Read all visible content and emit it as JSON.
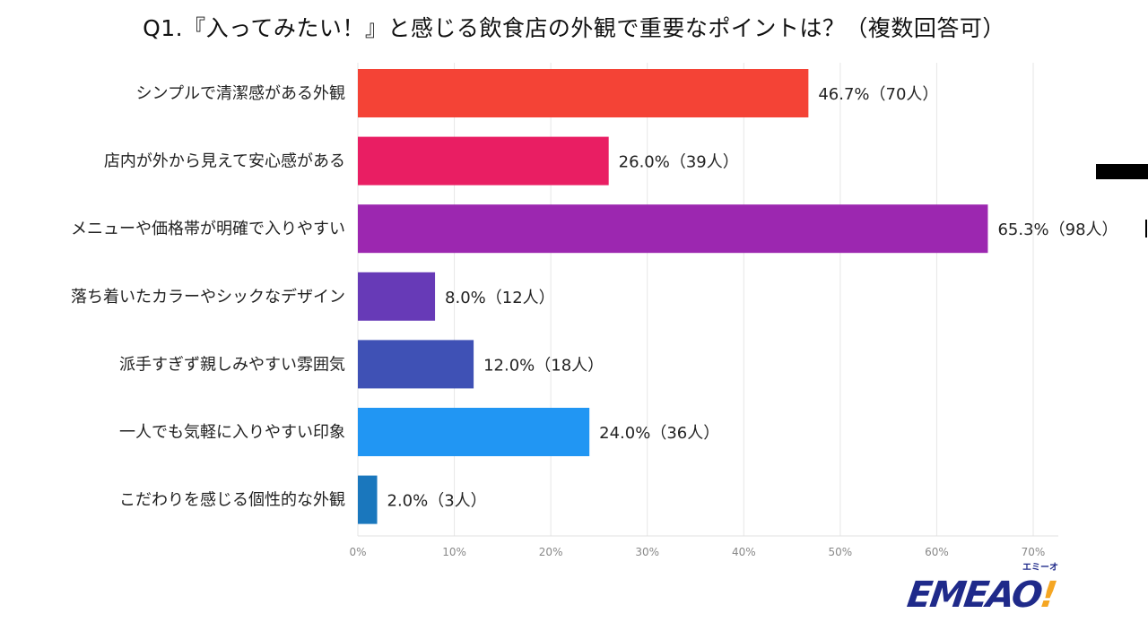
{
  "chart_data": {
    "type": "bar",
    "orientation": "horizontal",
    "title": "Q1.『入ってみたい！』と感じる飲食店の外観で重要なポイントは？（複数回答可）",
    "categories": [
      "シンプルで清潔感がある外観",
      "店内が外から見えて安心感がある",
      "メニューや価格帯が明確で入りやすい",
      "落ち着いたカラーやシックなデザイン",
      "派手すぎず親しみやすい雰囲気",
      "一人でも気軽に入りやすい印象",
      "こだわりを感じる個性的な外観"
    ],
    "values": [
      46.7,
      26.0,
      65.3,
      8.0,
      12.0,
      24.0,
      2.0
    ],
    "data_labels": [
      "46.7%（70人）",
      "26.0%（39人）",
      "65.3%（98人）",
      "8.0%（12人）",
      "12.0%（18人）",
      "24.0%（36人）",
      "2.0%（3人）"
    ],
    "colors": [
      "#f44336",
      "#e91e63",
      "#9c27b0",
      "#673ab7",
      "#3f51b5",
      "#2196f3",
      "#1a77bd"
    ],
    "xlim": [
      0,
      70
    ],
    "xticks": [
      "0%",
      "10%",
      "20%",
      "30%",
      "40%",
      "50%",
      "60%",
      "70%"
    ],
    "grid": true,
    "xlabel": "",
    "ylabel": ""
  },
  "logo": {
    "text": "EMEAO",
    "bang": "!",
    "kana": "エミーオ"
  }
}
